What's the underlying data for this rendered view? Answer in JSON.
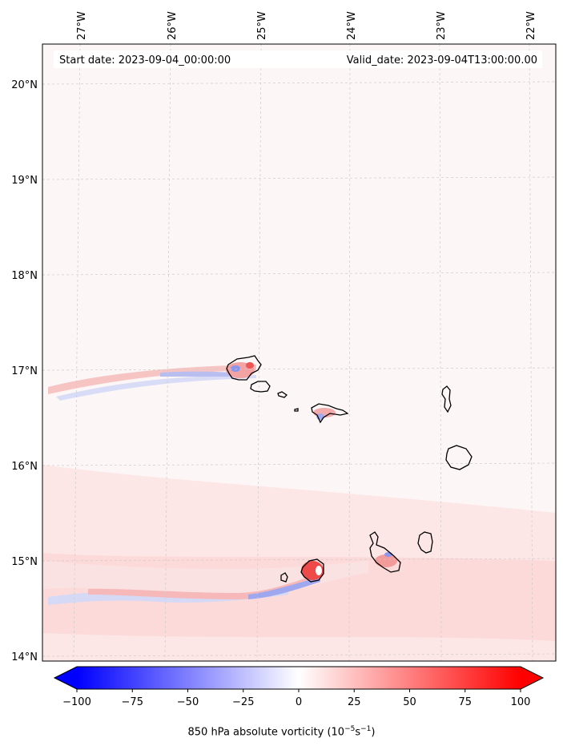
{
  "header": {
    "start_label": "Start date: 2023-09-04_00:00:00",
    "valid_label": "Valid_date: 2023-09-04T13:00:00.00"
  },
  "map": {
    "lon_labels": [
      "27°W",
      "26°W",
      "25°W",
      "24°W",
      "23°W",
      "22°W"
    ],
    "lat_labels": [
      "20°N",
      "19°N",
      "18°N",
      "17°N",
      "16°N",
      "15°N",
      "14°N"
    ],
    "background_color": "#fdf6f6",
    "features": [
      "Santo Antão",
      "São Vicente",
      "Santa Luzia",
      "São Nicolau",
      "Sal",
      "Boa Vista",
      "Maio",
      "Santiago",
      "Fogo",
      "Brava"
    ]
  },
  "colorbar": {
    "ticks": [
      "−100",
      "−75",
      "−50",
      "−25",
      "0",
      "25",
      "50",
      "75",
      "100"
    ],
    "min": -100,
    "max": 100,
    "title": "850 hPa absolute vorticity (10",
    "title_sup1": "−5",
    "title_mid": "s",
    "title_sup2": "−1",
    "title_end": ")",
    "colors": {
      "negative": "#0000ff",
      "zero": "#ffffff",
      "positive": "#ff0000"
    },
    "extend": "both"
  }
}
